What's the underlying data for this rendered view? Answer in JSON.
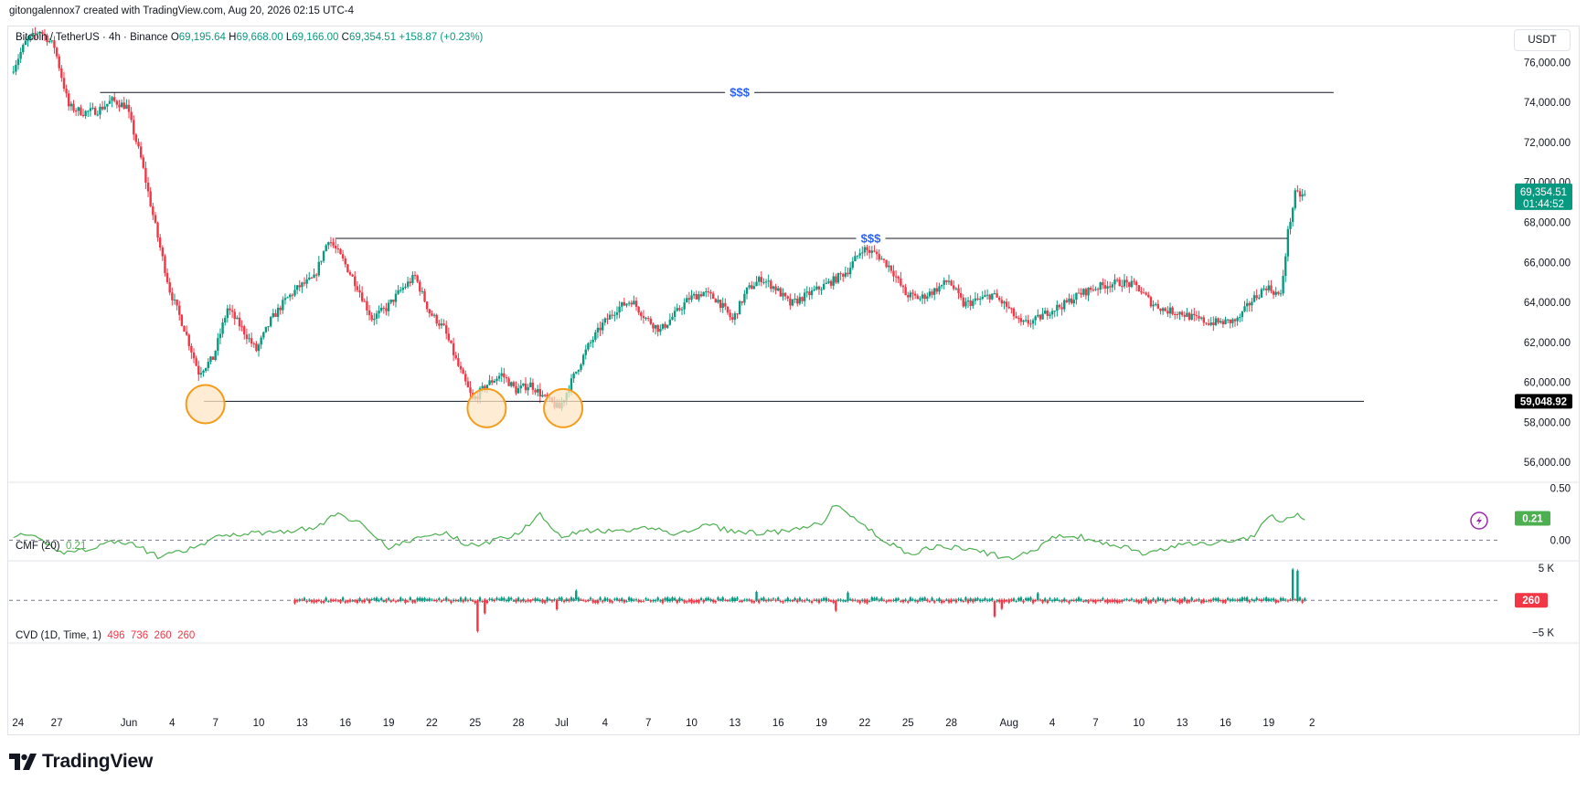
{
  "attribution": "gitongalennox7 created with TradingView.com, Aug 20, 2026 02:15 UTC-4",
  "brand": {
    "name": "TradingView",
    "logo_icon": "tradingview-logo-icon"
  },
  "currency": "USDT",
  "legend": {
    "symbol": "Bitcoin / TetherUS · 4h · Binance",
    "open_label": "O",
    "open": "69,195.64",
    "high_label": "H",
    "high": "69,668.00",
    "low_label": "L",
    "low": "69,166.00",
    "close_label": "C",
    "close": "69,354.51",
    "change": "+158.87 (+0.23%)"
  },
  "indicators": {
    "cmf": {
      "label": "CMF (20)",
      "value": "0.21"
    },
    "cvd": {
      "label": "CVD (1D, Time, 1)",
      "values": [
        "496",
        "736",
        "260",
        "260"
      ]
    }
  },
  "colors": {
    "up": "#089981",
    "down": "#f23645",
    "cmf_line": "#4caf50",
    "marker_fill": "#fde7c6",
    "marker_stroke": "#f59c1a",
    "annotation": "#2962ff",
    "last_price_bg": "#089981",
    "level_bg": "#000000"
  },
  "chart_data": [
    {
      "type": "candlestick",
      "title": "Bitcoin / TetherUS · 4h · Binance",
      "ylim": [
        55000,
        77800
      ],
      "y_ticks": [
        56000,
        58000,
        60000,
        62000,
        64000,
        66000,
        68000,
        70000,
        72000,
        74000,
        76000
      ],
      "y_tick_labels": [
        "56,000.00",
        "58,000.00",
        "60,000.00",
        "62,000.00",
        "64,000.00",
        "66,000.00",
        "68,000.00",
        "70,000.00",
        "72,000.00",
        "74,000.00",
        "76,000.00"
      ],
      "x_tick_labels": [
        "24",
        "27",
        "Jun",
        "4",
        "7",
        "10",
        "13",
        "16",
        "19",
        "22",
        "25",
        "28",
        "Jul",
        "4",
        "7",
        "10",
        "13",
        "16",
        "19",
        "22",
        "25",
        "28",
        "Aug",
        "4",
        "7",
        "10",
        "13",
        "16",
        "19",
        "2"
      ],
      "x_tick_days": [
        0,
        3,
        8,
        11,
        14,
        17,
        20,
        23,
        26,
        29,
        32,
        35,
        38,
        41,
        44,
        47,
        50,
        53,
        56,
        59,
        62,
        65,
        69,
        72,
        75,
        78,
        81,
        84,
        87,
        90
      ],
      "x_range_days": [
        -0.3,
        93.6
      ],
      "price_path": [
        [
          0,
          75500
        ],
        [
          1,
          77000
        ],
        [
          2,
          77600
        ],
        [
          3,
          76800
        ],
        [
          4,
          73800
        ],
        [
          5,
          73500
        ],
        [
          6,
          73600
        ],
        [
          7,
          74100
        ],
        [
          8,
          73800
        ],
        [
          9,
          71200
        ],
        [
          10,
          67800
        ],
        [
          11,
          64600
        ],
        [
          12,
          62700
        ],
        [
          13,
          60500
        ],
        [
          14,
          61200
        ],
        [
          15,
          63700
        ],
        [
          16,
          62700
        ],
        [
          17,
          61600
        ],
        [
          18,
          63100
        ],
        [
          19,
          64100
        ],
        [
          20,
          64800
        ],
        [
          21,
          65200
        ],
        [
          22,
          67200
        ],
        [
          23,
          66100
        ],
        [
          24,
          64800
        ],
        [
          25,
          63200
        ],
        [
          26,
          63700
        ],
        [
          27,
          64600
        ],
        [
          28,
          65300
        ],
        [
          29,
          63500
        ],
        [
          30,
          62700
        ],
        [
          31,
          60800
        ],
        [
          32,
          59100
        ],
        [
          33,
          59900
        ],
        [
          34,
          60400
        ],
        [
          35,
          59600
        ],
        [
          36,
          59900
        ],
        [
          37,
          59200
        ],
        [
          38,
          58700
        ],
        [
          39,
          60300
        ],
        [
          40,
          61800
        ],
        [
          41,
          62900
        ],
        [
          42,
          63700
        ],
        [
          43,
          64100
        ],
        [
          44,
          63200
        ],
        [
          45,
          62600
        ],
        [
          46,
          63400
        ],
        [
          47,
          64200
        ],
        [
          48,
          64500
        ],
        [
          49,
          64100
        ],
        [
          50,
          63100
        ],
        [
          51,
          64600
        ],
        [
          52,
          65200
        ],
        [
          53,
          64700
        ],
        [
          54,
          63900
        ],
        [
          55,
          64300
        ],
        [
          56,
          64700
        ],
        [
          57,
          65100
        ],
        [
          58,
          65600
        ],
        [
          59,
          66700
        ],
        [
          60,
          66400
        ],
        [
          61,
          65700
        ],
        [
          62,
          64400
        ],
        [
          63,
          64200
        ],
        [
          64,
          64600
        ],
        [
          65,
          65100
        ],
        [
          66,
          63900
        ],
        [
          67,
          64100
        ],
        [
          68,
          64400
        ],
        [
          69,
          63800
        ],
        [
          70,
          62900
        ],
        [
          71,
          63100
        ],
        [
          72,
          63600
        ],
        [
          73,
          63900
        ],
        [
          74,
          64400
        ],
        [
          75,
          64700
        ],
        [
          76,
          64900
        ],
        [
          77,
          65000
        ],
        [
          78,
          64800
        ],
        [
          79,
          64000
        ],
        [
          80,
          63600
        ],
        [
          81,
          63500
        ],
        [
          82,
          63200
        ],
        [
          83,
          63000
        ],
        [
          84,
          63000
        ],
        [
          85,
          63100
        ],
        [
          86,
          64100
        ],
        [
          87,
          64800
        ],
        [
          88,
          64300
        ],
        [
          88.5,
          67500
        ],
        [
          89,
          69400
        ],
        [
          89.5,
          69354.51
        ]
      ],
      "levels": [
        {
          "price": 74500,
          "from_day": 6,
          "to_day": 91.5,
          "label": "$$$"
        },
        {
          "price": 67200,
          "from_day": 22.3,
          "to_day": 88.3,
          "label": "$$$"
        },
        {
          "price": 59048.92,
          "from_day": 13.2,
          "to_day": 93.6,
          "label": "59,048.92"
        }
      ],
      "marked_lows": [
        {
          "day": 13.3,
          "price": 59000
        },
        {
          "day": 32.8,
          "price": 58800
        },
        {
          "day": 38.1,
          "price": 58800
        }
      ],
      "last_price": {
        "value": "69,354.51",
        "countdown": "01:44:52"
      }
    },
    {
      "type": "line",
      "title": "CMF (20)",
      "ylim": [
        -0.2,
        0.55
      ],
      "y_ticks": [
        0.0,
        0.5
      ],
      "y_tick_labels": [
        "0.00",
        "0.50"
      ],
      "zero_line": 0,
      "path": [
        [
          0,
          0.05
        ],
        [
          1.5,
          0.02
        ],
        [
          3.5,
          -0.12
        ],
        [
          5,
          -0.09
        ],
        [
          7,
          -0.01
        ],
        [
          8.5,
          -0.05
        ],
        [
          10,
          -0.16
        ],
        [
          11.5,
          -0.12
        ],
        [
          13,
          -0.05
        ],
        [
          14.5,
          0.05
        ],
        [
          17,
          0.07
        ],
        [
          19,
          0.09
        ],
        [
          21,
          0.12
        ],
        [
          22.5,
          0.26
        ],
        [
          24.5,
          0.13
        ],
        [
          26,
          -0.08
        ],
        [
          28,
          0.02
        ],
        [
          30,
          0.07
        ],
        [
          31.5,
          -0.05
        ],
        [
          33,
          -0.02
        ],
        [
          35,
          0.07
        ],
        [
          36.5,
          0.25
        ],
        [
          38,
          0.04
        ],
        [
          39.5,
          0.09
        ],
        [
          42,
          0.08
        ],
        [
          44.5,
          0.12
        ],
        [
          46,
          0.05
        ],
        [
          48,
          0.15
        ],
        [
          50,
          0.08
        ],
        [
          52,
          0.07
        ],
        [
          54,
          0.09
        ],
        [
          56,
          0.16
        ],
        [
          57,
          0.35
        ],
        [
          59,
          0.13
        ],
        [
          60.5,
          -0.01
        ],
        [
          62,
          -0.14
        ],
        [
          63.5,
          -0.07
        ],
        [
          65,
          -0.07
        ],
        [
          67,
          -0.11
        ],
        [
          69,
          -0.18
        ],
        [
          70.5,
          -0.12
        ],
        [
          72,
          0.03
        ],
        [
          74,
          0.03
        ],
        [
          75.5,
          -0.04
        ],
        [
          77,
          -0.06
        ],
        [
          78.5,
          -0.14
        ],
        [
          80,
          -0.08
        ],
        [
          81.5,
          -0.03
        ],
        [
          83,
          -0.03
        ],
        [
          84.5,
          0.0
        ],
        [
          86,
          0.03
        ],
        [
          87,
          0.24
        ],
        [
          88,
          0.18
        ],
        [
          89,
          0.26
        ],
        [
          89.5,
          0.21
        ]
      ]
    },
    {
      "type": "bar",
      "title": "CVD (1D, Time, 1)",
      "ylim": [
        -6500,
        6000
      ],
      "y_ticks": [
        5000,
        -5000
      ],
      "y_tick_labels": [
        "5 K",
        "−5 K"
      ],
      "zero_line": 0,
      "start_day": 19.5,
      "end_day": 89.6,
      "spikes": [
        {
          "day": 32.2,
          "value": -4800
        },
        {
          "day": 32.6,
          "value": -2000
        },
        {
          "day": 37.6,
          "value": -1400
        },
        {
          "day": 39.0,
          "value": 1500
        },
        {
          "day": 51.5,
          "value": 1300
        },
        {
          "day": 57.0,
          "value": -1600
        },
        {
          "day": 57.8,
          "value": 1200
        },
        {
          "day": 68.0,
          "value": -2500
        },
        {
          "day": 68.5,
          "value": -1300
        },
        {
          "day": 71.0,
          "value": 1100
        },
        {
          "day": 88.6,
          "value": 4800
        },
        {
          "day": 89.0,
          "value": 4600
        }
      ],
      "last_value": "260"
    }
  ]
}
